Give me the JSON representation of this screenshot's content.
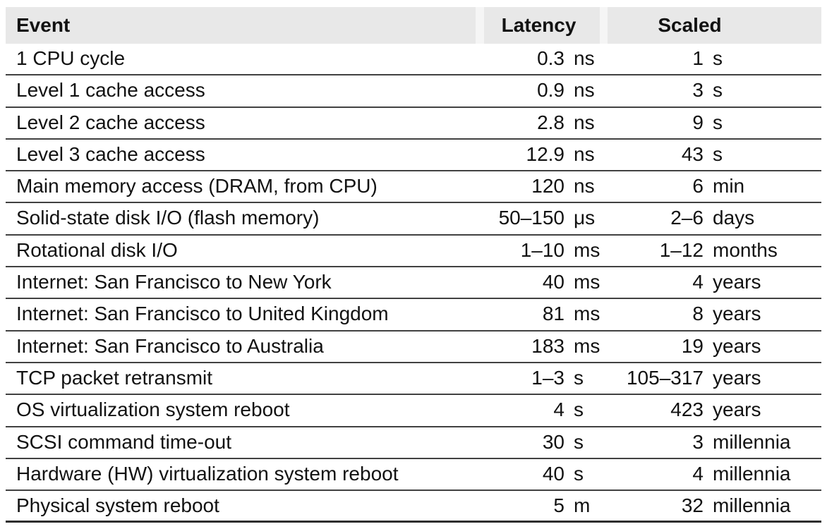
{
  "table": {
    "headers": {
      "event": "Event",
      "latency": "Latency",
      "scaled": "Scaled"
    },
    "rows": [
      {
        "event": "1 CPU cycle",
        "latency_value": "0.3",
        "latency_unit": "ns",
        "scaled_value": "1",
        "scaled_unit": "s"
      },
      {
        "event": "Level 1 cache access",
        "latency_value": "0.9",
        "latency_unit": "ns",
        "scaled_value": "3",
        "scaled_unit": "s"
      },
      {
        "event": "Level 2 cache access",
        "latency_value": "2.8",
        "latency_unit": "ns",
        "scaled_value": "9",
        "scaled_unit": "s"
      },
      {
        "event": "Level 3 cache access",
        "latency_value": "12.9",
        "latency_unit": "ns",
        "scaled_value": "43",
        "scaled_unit": "s"
      },
      {
        "event": "Main memory access (DRAM, from CPU)",
        "latency_value": "120",
        "latency_unit": "ns",
        "scaled_value": "6",
        "scaled_unit": "min"
      },
      {
        "event": "Solid-state disk I/O (flash memory)",
        "latency_value": "50–150",
        "latency_unit": "μs",
        "scaled_value": "2–6",
        "scaled_unit": "days"
      },
      {
        "event": "Rotational disk I/O",
        "latency_value": "1–10",
        "latency_unit": "ms",
        "scaled_value": "1–12",
        "scaled_unit": "months"
      },
      {
        "event": "Internet: San Francisco to New York",
        "latency_value": "40",
        "latency_unit": "ms",
        "scaled_value": "4",
        "scaled_unit": "years"
      },
      {
        "event": "Internet: San Francisco to United Kingdom",
        "latency_value": "81",
        "latency_unit": "ms",
        "scaled_value": "8",
        "scaled_unit": "years"
      },
      {
        "event": "Internet: San Francisco to Australia",
        "latency_value": "183",
        "latency_unit": "ms",
        "scaled_value": "19",
        "scaled_unit": "years"
      },
      {
        "event": "TCP packet retransmit",
        "latency_value": "1–3",
        "latency_unit": "s",
        "scaled_value": "105–317",
        "scaled_unit": "years"
      },
      {
        "event": "OS virtualization system reboot",
        "latency_value": "4",
        "latency_unit": "s",
        "scaled_value": "423",
        "scaled_unit": "years"
      },
      {
        "event": "SCSI command time-out",
        "latency_value": "30",
        "latency_unit": "s",
        "scaled_value": "3",
        "scaled_unit": "millennia"
      },
      {
        "event": "Hardware (HW) virtualization system reboot",
        "latency_value": "40",
        "latency_unit": "s",
        "scaled_value": "4",
        "scaled_unit": "millennia"
      },
      {
        "event": "Physical system reboot",
        "latency_value": "5",
        "latency_unit": "m",
        "scaled_value": "32",
        "scaled_unit": "millennia"
      }
    ]
  },
  "colors": {
    "header_bg": "#e8e8e8",
    "header_gap": "#f5f5f5",
    "row_line": "#414141",
    "bottom_line": "#2e2e2e",
    "text": "#121212",
    "background": "#ffffff"
  }
}
